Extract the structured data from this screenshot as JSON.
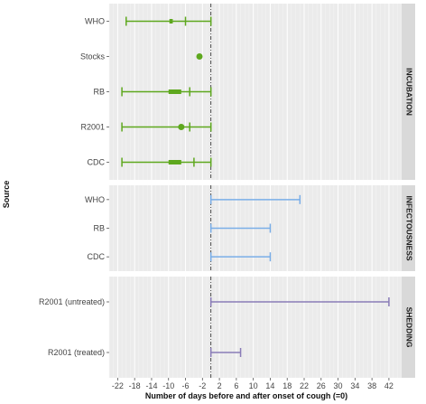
{
  "chart_data": {
    "type": "range-plot",
    "xlabel": "Number of days before and after onset of cough (=0)",
    "ylabel": "Source",
    "xlim": [
      -24,
      45
    ],
    "x_ticks": [
      -22,
      -18,
      -14,
      -10,
      -6,
      -2,
      2,
      6,
      10,
      14,
      18,
      22,
      26,
      30,
      34,
      38,
      42
    ],
    "x_tick_labels": [
      "-22",
      "-18",
      "-14",
      "-10",
      "-6",
      "-2",
      "2",
      "6",
      "10",
      "14",
      "18",
      "22",
      "26",
      "30",
      "34",
      "38",
      "42"
    ],
    "reference_line": {
      "x": 0,
      "style": "dash-dot"
    },
    "grid": true,
    "panels": [
      {
        "label": "INCUBATION",
        "color": "#5ea81e",
        "rows": [
          {
            "source": "WHO",
            "whisker_low": -20,
            "whisker_high": 0,
            "inner_ticks": [
              -6
            ],
            "box": [
              -9.8,
              -9
            ],
            "point": null
          },
          {
            "source": "Stocks",
            "whisker_low": null,
            "whisker_high": null,
            "inner_ticks": [],
            "box": null,
            "point": -2.7
          },
          {
            "source": "RB",
            "whisker_low": -21,
            "whisker_high": 0,
            "inner_ticks": [
              -5
            ],
            "box": [
              -10,
              -7
            ],
            "point": null
          },
          {
            "source": "R2001",
            "whisker_low": -21,
            "whisker_high": 0,
            "inner_ticks": [
              -5
            ],
            "box": null,
            "point": -7
          },
          {
            "source": "CDC",
            "whisker_low": -21,
            "whisker_high": 0,
            "inner_ticks": [
              -4
            ],
            "box": [
              -10,
              -7
            ],
            "point": null
          }
        ]
      },
      {
        "label": "INFECTOUSNESS",
        "color": "#7aaee8",
        "rows": [
          {
            "source": "WHO",
            "whisker_low": 0,
            "whisker_high": 21,
            "inner_ticks": [],
            "box": null,
            "point": null
          },
          {
            "source": "RB",
            "whisker_low": 0,
            "whisker_high": 14,
            "inner_ticks": [],
            "box": null,
            "point": null
          },
          {
            "source": "CDC",
            "whisker_low": 0,
            "whisker_high": 14,
            "inner_ticks": [],
            "box": null,
            "point": null
          }
        ]
      },
      {
        "label": "SHEDDING",
        "color": "#8a7cb8",
        "rows": [
          {
            "source": "R2001 (untreated)",
            "whisker_low": 0,
            "whisker_high": 42,
            "inner_ticks": [],
            "box": null,
            "point": null
          },
          {
            "source": "R2001 (treated)",
            "whisker_low": 0,
            "whisker_high": 7,
            "inner_ticks": [],
            "box": null,
            "point": null
          }
        ]
      }
    ]
  }
}
